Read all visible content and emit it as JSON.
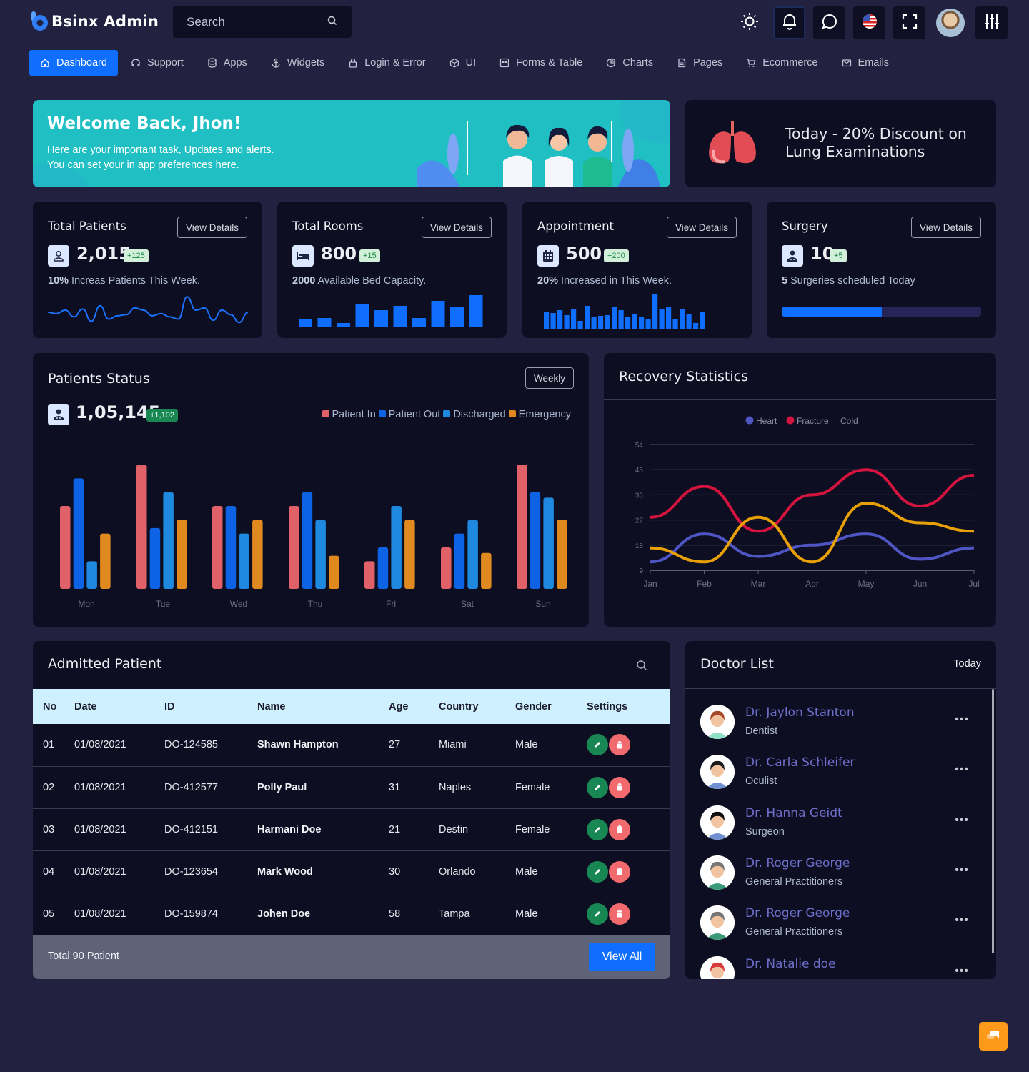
{
  "app": {
    "name": "Bsinx Admin",
    "brand_color": "#0f6efd"
  },
  "search": {
    "placeholder": "Search"
  },
  "header_icons": [
    "sun-icon",
    "bell-icon",
    "chat-icon",
    "us-flag-icon",
    "fullscreen-icon",
    "user-avatar",
    "settings-sliders-icon"
  ],
  "nav": {
    "items": [
      {
        "label": "Dashboard",
        "icon": "home-icon",
        "active": true
      },
      {
        "label": "Support",
        "icon": "headset-icon"
      },
      {
        "label": "Apps",
        "icon": "database-icon"
      },
      {
        "label": "Widgets",
        "icon": "anchor-icon"
      },
      {
        "label": "Login & Error",
        "icon": "lock-icon"
      },
      {
        "label": "UI",
        "icon": "box-icon"
      },
      {
        "label": "Forms & Table",
        "icon": "form-icon"
      },
      {
        "label": "Charts",
        "icon": "pie-chart-icon"
      },
      {
        "label": "Pages",
        "icon": "file-icon"
      },
      {
        "label": "Ecommerce",
        "icon": "cart-icon"
      },
      {
        "label": "Emails",
        "icon": "mail-icon"
      }
    ]
  },
  "welcome": {
    "title": "Welcome Back, Jhon!",
    "line1": "Here are your important task, Updates and alerts.",
    "line2": "You can set your in app preferences here."
  },
  "promo": {
    "line1": "Today - 20% Discount on",
    "line2": "Lung Examinations"
  },
  "stats": [
    {
      "title": "Total Patients",
      "button": "View Details",
      "value": "2,015",
      "badge": "+125",
      "sub_bold": "10%",
      "sub": " Increas Patients This Week.",
      "icon": "user-icon"
    },
    {
      "title": "Total Rooms",
      "button": "View Details",
      "value": "800",
      "badge": "+15",
      "sub_bold": "2000",
      "sub": " Available Bed Capacity.",
      "icon": "bed-icon"
    },
    {
      "title": "Appointment",
      "button": "View Details",
      "value": "500",
      "badge": "+200",
      "sub_bold": "20%",
      "sub": " Increased in This Week.",
      "icon": "calendar-icon"
    },
    {
      "title": "Surgery",
      "button": "View Details",
      "value": "10",
      "badge": "+5",
      "sub_bold": "5",
      "sub": " Surgeries scheduled Today",
      "icon": "doctor-icon",
      "progress_pct": 50
    }
  ],
  "patients_status": {
    "title": "Patients Status",
    "filter": "Weekly",
    "total": "1,05,145",
    "badge": "+1,102",
    "legend": [
      {
        "label": "Patient In",
        "color": "#e06167"
      },
      {
        "label": "Patient Out",
        "color": "#0d63e3"
      },
      {
        "label": "Discharged",
        "color": "#1f89e0"
      },
      {
        "label": "Emergency",
        "color": "#e0891f"
      }
    ]
  },
  "recovery": {
    "title": "Recovery Statistics"
  },
  "chart_data": [
    {
      "type": "line",
      "title": "Total Patients sparkline",
      "values": [
        22,
        21,
        24,
        18,
        25,
        14,
        28,
        16,
        19,
        20,
        26,
        24,
        19,
        21,
        18,
        16,
        36,
        24,
        26,
        15,
        24,
        20,
        13,
        22
      ]
    },
    {
      "type": "bar",
      "title": "Total Rooms mini bars",
      "values": [
        12,
        13,
        6,
        32,
        24,
        30,
        13,
        37,
        29,
        45
      ]
    },
    {
      "type": "bar",
      "title": "Appointment mini bars",
      "values": [
        24,
        23,
        27,
        20,
        28,
        12,
        33,
        17,
        19,
        20,
        31,
        27,
        18,
        21,
        18,
        14,
        50,
        28,
        32,
        14,
        28,
        22,
        9,
        25
      ]
    },
    {
      "type": "bar",
      "title": "Patients Status",
      "categories": [
        "Mon",
        "Tue",
        "Wed",
        "Thu",
        "Fri",
        "Sat",
        "Sun"
      ],
      "series": [
        {
          "name": "Patient In",
          "values": [
            60,
            90,
            60,
            60,
            20,
            30,
            90
          ]
        },
        {
          "name": "Patient Out",
          "values": [
            80,
            44,
            60,
            70,
            30,
            40,
            70
          ]
        },
        {
          "name": "Discharged",
          "values": [
            20,
            70,
            40,
            50,
            60,
            50,
            66
          ]
        },
        {
          "name": "Emergency",
          "values": [
            40,
            50,
            50,
            24,
            50,
            26,
            50
          ]
        }
      ],
      "ylim": [
        0,
        100
      ],
      "legend_position": "top-right"
    },
    {
      "type": "line",
      "title": "Recovery Statistics",
      "x": [
        "Jan",
        "Feb",
        "Mar",
        "Apr",
        "May",
        "Jun",
        "Jul"
      ],
      "series": [
        {
          "name": "Heart",
          "color": "#4f56c4",
          "values": [
            12,
            22,
            14,
            18,
            22,
            13,
            17
          ]
        },
        {
          "name": "Fracture",
          "color": "#d3143f",
          "values": [
            28,
            39,
            23,
            36,
            45,
            32,
            43
          ]
        },
        {
          "name": "Cold",
          "color": "#e7a007",
          "values": [
            17,
            12,
            28,
            12,
            33,
            26,
            23
          ]
        }
      ],
      "yticks": [
        9,
        18,
        27,
        36,
        45,
        54
      ],
      "ylim": [
        9,
        54
      ],
      "grid": true,
      "legend_position": "top"
    }
  ],
  "admitted": {
    "title": "Admitted Patient",
    "columns": [
      "No",
      "Date",
      "ID",
      "Name",
      "Age",
      "Country",
      "Gender",
      "Settings"
    ],
    "rows": [
      {
        "no": "01",
        "date": "01/08/2021",
        "id": "DO-124585",
        "name": "Shawn Hampton",
        "age": "27",
        "country": "Miami",
        "gender": "Male"
      },
      {
        "no": "02",
        "date": "01/08/2021",
        "id": "DO-412577",
        "name": "Polly Paul",
        "age": "31",
        "country": "Naples",
        "gender": "Female"
      },
      {
        "no": "03",
        "date": "01/08/2021",
        "id": "DO-412151",
        "name": "Harmani Doe",
        "age": "21",
        "country": "Destin",
        "gender": "Female"
      },
      {
        "no": "04",
        "date": "01/08/2021",
        "id": "DO-123654",
        "name": "Mark Wood",
        "age": "30",
        "country": "Orlando",
        "gender": "Male"
      },
      {
        "no": "05",
        "date": "01/08/2021",
        "id": "DO-159874",
        "name": "Johen Doe",
        "age": "58",
        "country": "Tampa",
        "gender": "Male"
      }
    ],
    "footer_total": "Total 90 Patient",
    "view_all": "View All"
  },
  "doctors": {
    "title": "Doctor List",
    "filter": "Today",
    "list": [
      {
        "name": "Dr. Jaylon Stanton",
        "specialty": "Dentist",
        "hair": "#a64a2a",
        "shirt": "#8fe0c8"
      },
      {
        "name": "Dr. Carla Schleifer",
        "specialty": "Oculist",
        "hair": "#1b1b1b",
        "shirt": "#6f8fd0"
      },
      {
        "name": "Dr. Hanna Geidt",
        "specialty": "Surgeon",
        "hair": "#111111",
        "shirt": "#6f8fd0"
      },
      {
        "name": "Dr. Roger George",
        "specialty": "General Practitioners",
        "hair": "#777777",
        "shirt": "#3a9a78"
      },
      {
        "name": "Dr. Roger George",
        "specialty": "General Practitioners",
        "hair": "#777777",
        "shirt": "#3a9a78"
      },
      {
        "name": "Dr. Natalie doe",
        "specialty": "",
        "hair": "#d83a3a",
        "shirt": "#f2c27a"
      }
    ],
    "more_label": "•••"
  }
}
